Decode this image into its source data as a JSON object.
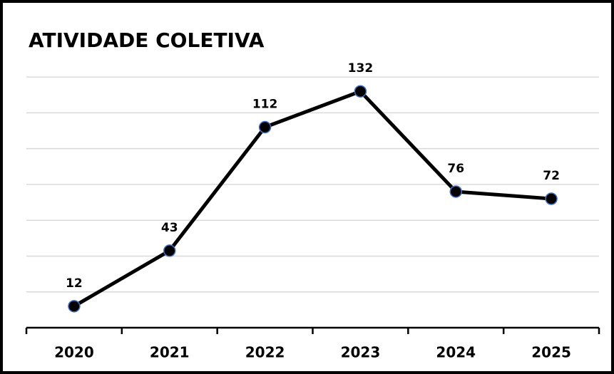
{
  "chart_data": {
    "type": "line",
    "title": "ATIVIDADE COLETIVA",
    "categories": [
      "2020",
      "2021",
      "2022",
      "2023",
      "2024",
      "2025"
    ],
    "values": [
      12,
      43,
      112,
      132,
      76,
      72
    ],
    "color": "#000000",
    "marker_edge_color": "#4472c4",
    "ylim": [
      0,
      150
    ],
    "yticks": [
      20,
      40,
      60,
      80,
      100,
      120,
      140
    ],
    "grid": true
  }
}
